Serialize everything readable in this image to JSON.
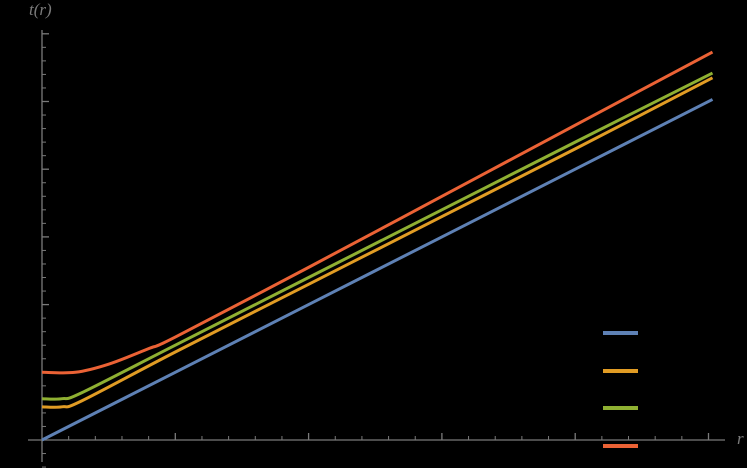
{
  "chart_data": {
    "type": "line",
    "title": "",
    "xlabel": "r",
    "ylabel": "t(r)",
    "xlim": [
      0,
      5.1
    ],
    "ylim": [
      -0.35,
      6.05
    ],
    "x_ticks_major": [
      0,
      1,
      2,
      3,
      4,
      5
    ],
    "y_ticks_major": [
      0,
      1,
      2,
      3,
      4,
      5,
      6
    ],
    "tick_labels_visible": false,
    "grid": false,
    "legend_position": "lower right",
    "series": [
      {
        "name": "",
        "color": "#5e81b5",
        "x": [
          0,
          1,
          2,
          3,
          4,
          5.03
        ],
        "y": [
          0,
          1.0,
          2.0,
          3.0,
          4.0,
          5.03
        ]
      },
      {
        "name": "",
        "color": "#e19c24",
        "x": [
          0,
          0.15,
          0.3,
          1,
          2,
          3,
          4,
          5.03
        ],
        "y": [
          0.49,
          0.49,
          0.58,
          1.3,
          2.3,
          3.3,
          4.3,
          5.35
        ]
      },
      {
        "name": "",
        "color": "#8fb032",
        "x": [
          0,
          0.15,
          0.3,
          1,
          2,
          3,
          4,
          5.03
        ],
        "y": [
          0.61,
          0.61,
          0.7,
          1.4,
          2.4,
          3.4,
          4.4,
          5.42
        ]
      },
      {
        "name": "",
        "color": "#eb6235",
        "x": [
          0,
          0.25,
          0.5,
          0.8,
          1,
          2,
          3,
          4,
          5.03
        ],
        "y": [
          1.0,
          1.0,
          1.12,
          1.35,
          1.52,
          2.55,
          3.6,
          4.65,
          5.73
        ]
      }
    ]
  },
  "axes": {
    "color": "#7a7a7a",
    "x_label": "r",
    "y_label": "t(r)"
  },
  "legend": {
    "items": [
      {
        "label": "",
        "color": "#5e81b5"
      },
      {
        "label": "",
        "color": "#e19c24"
      },
      {
        "label": "",
        "color": "#8fb032"
      },
      {
        "label": "",
        "color": "#eb6235"
      }
    ]
  }
}
